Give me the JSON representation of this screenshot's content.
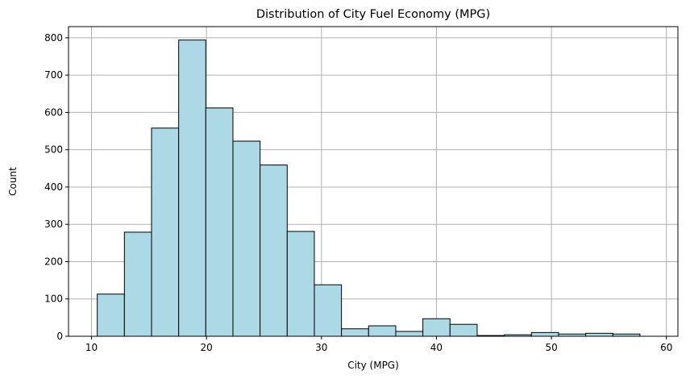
{
  "chart_data": {
    "type": "bar",
    "title": "Distribution of City Fuel Economy (MPG)",
    "xlabel": "City (MPG)",
    "ylabel": "Count",
    "xlim": [
      8,
      61
    ],
    "ylim": [
      0,
      830
    ],
    "xticks": [
      10,
      20,
      30,
      40,
      50,
      60
    ],
    "yticks": [
      0,
      100,
      200,
      300,
      400,
      500,
      600,
      700,
      800
    ],
    "grid": true,
    "bar_color": "#add8e6",
    "edge_color": "#000000",
    "bins": [
      {
        "x0": 10.5,
        "x1": 12.86,
        "count": 113
      },
      {
        "x0": 12.86,
        "x1": 15.22,
        "count": 279
      },
      {
        "x0": 15.22,
        "x1": 17.58,
        "count": 558
      },
      {
        "x0": 17.58,
        "x1": 19.94,
        "count": 794
      },
      {
        "x0": 19.94,
        "x1": 22.3,
        "count": 612
      },
      {
        "x0": 22.3,
        "x1": 24.66,
        "count": 523
      },
      {
        "x0": 24.66,
        "x1": 27.02,
        "count": 459
      },
      {
        "x0": 27.02,
        "x1": 29.38,
        "count": 281
      },
      {
        "x0": 29.38,
        "x1": 31.74,
        "count": 138
      },
      {
        "x0": 31.74,
        "x1": 34.1,
        "count": 20
      },
      {
        "x0": 34.1,
        "x1": 36.46,
        "count": 28
      },
      {
        "x0": 36.46,
        "x1": 38.82,
        "count": 13
      },
      {
        "x0": 38.82,
        "x1": 41.18,
        "count": 47
      },
      {
        "x0": 41.18,
        "x1": 43.54,
        "count": 32
      },
      {
        "x0": 43.54,
        "x1": 45.9,
        "count": 2
      },
      {
        "x0": 45.9,
        "x1": 48.26,
        "count": 4
      },
      {
        "x0": 48.26,
        "x1": 50.62,
        "count": 10
      },
      {
        "x0": 50.62,
        "x1": 52.98,
        "count": 6
      },
      {
        "x0": 52.98,
        "x1": 55.34,
        "count": 8
      },
      {
        "x0": 55.34,
        "x1": 57.7,
        "count": 6
      }
    ]
  }
}
